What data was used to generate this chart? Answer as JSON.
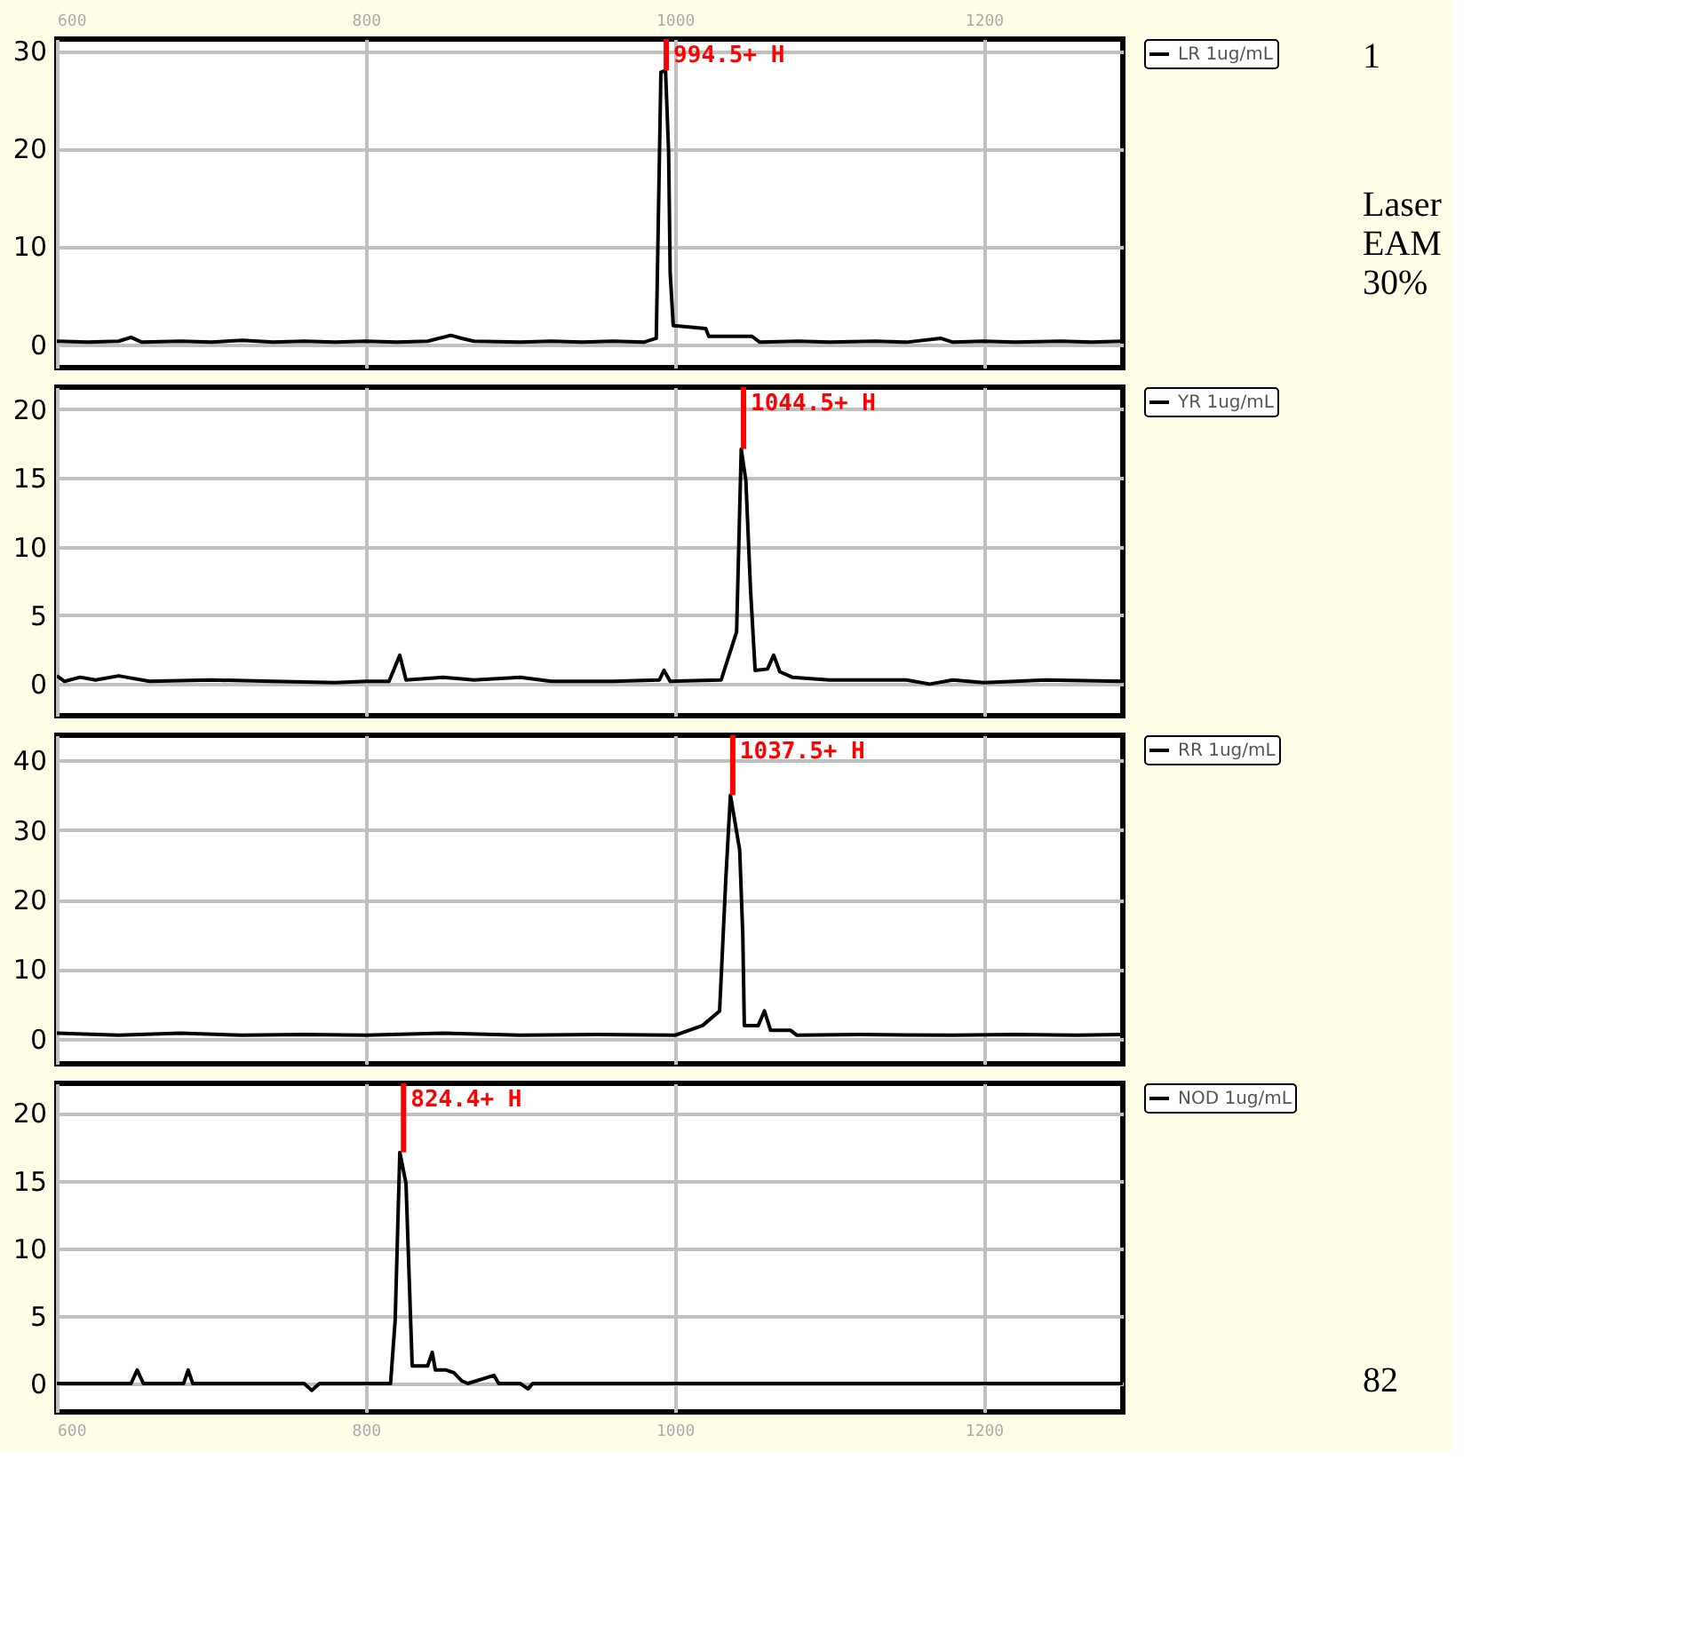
{
  "chart_data": [
    {
      "type": "line",
      "xlim": [
        600,
        1290
      ],
      "xticks": [
        600,
        800,
        1000,
        1200
      ],
      "ylim": [
        -2.4,
        31.2
      ],
      "yticks": [
        0,
        10,
        20,
        30
      ],
      "grid": true,
      "legend": "right",
      "series": [
        {
          "name": "LR 1ug/mL",
          "color": "#000000",
          "x": [
            600,
            620,
            640,
            648,
            655,
            680,
            700,
            720,
            740,
            760,
            780,
            800,
            820,
            840,
            855,
            862,
            870,
            900,
            920,
            940,
            960,
            980,
            988,
            991,
            994,
            996,
            997,
            999,
            1020,
            1022,
            1050,
            1055,
            1080,
            1100,
            1130,
            1150,
            1172,
            1180,
            1200,
            1220,
            1250,
            1270,
            1290
          ],
          "values": [
            0.3,
            0.2,
            0.3,
            0.7,
            0.2,
            0.3,
            0.2,
            0.4,
            0.2,
            0.3,
            0.2,
            0.3,
            0.2,
            0.3,
            0.9,
            0.6,
            0.3,
            0.2,
            0.3,
            0.2,
            0.3,
            0.2,
            0.6,
            27.8,
            28,
            19.6,
            7.3,
            1.9,
            1.6,
            0.8,
            0.8,
            0.2,
            0.3,
            0.2,
            0.3,
            0.2,
            0.6,
            0.2,
            0.3,
            0.2,
            0.3,
            0.2,
            0.3
          ]
        }
      ],
      "annotations": [
        {
          "text": "994.5+ H",
          "x": 994.5,
          "y": 28
        },
        "1",
        "Laser EAM 30%"
      ]
    },
    {
      "type": "line",
      "xlim": [
        600,
        1290
      ],
      "xticks": [
        600,
        800,
        1000,
        1200
      ],
      "ylim": [
        -2.3,
        21.6
      ],
      "yticks": [
        0,
        5,
        10,
        15,
        20
      ],
      "grid": true,
      "legend": "right",
      "tick_labels": "y",
      "series": [
        {
          "name": "YR 1ug/mL",
          "color": "#000000",
          "x": [
            600,
            605,
            615,
            625,
            640,
            660,
            700,
            740,
            780,
            800,
            815,
            822,
            826,
            850,
            870,
            900,
            920,
            960,
            990,
            993,
            997,
            1030,
            1040,
            1043,
            1046,
            1049,
            1052,
            1060,
            1064,
            1068,
            1076,
            1100,
            1150,
            1165,
            1180,
            1200,
            1240,
            1290
          ],
          "values": [
            0.6,
            0.2,
            0.5,
            0.3,
            0.6,
            0.2,
            0.3,
            0.2,
            0.1,
            0.2,
            0.2,
            2.1,
            0.3,
            0.5,
            0.3,
            0.5,
            0.2,
            0.2,
            0.3,
            1.0,
            0.2,
            0.3,
            3.8,
            17.1,
            14.8,
            6.9,
            1.0,
            1.1,
            2.1,
            0.9,
            0.5,
            0.3,
            0.3,
            0.0,
            0.3,
            0.1,
            0.3,
            0.2
          ]
        }
      ],
      "annotations": [
        {
          "text": "1044.5+ H",
          "x": 1044.5,
          "y": 17.1
        }
      ]
    },
    {
      "type": "line",
      "xlim": [
        600,
        1290
      ],
      "xticks": [
        600,
        800,
        1000,
        1200
      ],
      "ylim": [
        -3.6,
        43.6
      ],
      "yticks": [
        0,
        10,
        20,
        30,
        40
      ],
      "grid": true,
      "legend": "right",
      "tick_labels": "y",
      "series": [
        {
          "name": "RR 1ug/mL",
          "color": "#000000",
          "x": [
            600,
            640,
            680,
            720,
            760,
            800,
            850,
            900,
            950,
            1000,
            1018,
            1029,
            1033,
            1036,
            1042,
            1044,
            1045,
            1054,
            1058,
            1062,
            1075,
            1079,
            1120,
            1180,
            1220,
            1260,
            1290
          ],
          "values": [
            0.8,
            0.5,
            0.8,
            0.5,
            0.6,
            0.5,
            0.8,
            0.5,
            0.6,
            0.5,
            1.9,
            4.0,
            22.9,
            35,
            27.1,
            15,
            1.9,
            1.9,
            4.0,
            1.2,
            1.2,
            0.5,
            0.6,
            0.5,
            0.6,
            0.5,
            0.6
          ]
        }
      ],
      "annotations": [
        {
          "text": "1037.5+ H",
          "x": 1037.5,
          "y": 35
        }
      ]
    },
    {
      "type": "line",
      "xlim": [
        600,
        1290
      ],
      "xticks": [
        600,
        800,
        1000,
        1200
      ],
      "ylim": [
        -2.1,
        22.2
      ],
      "yticks": [
        0,
        5,
        10,
        15,
        20
      ],
      "grid": true,
      "legend": "right",
      "series": [
        {
          "name": "NOD 1ug/mL",
          "color": "#000000",
          "x": [
            600,
            648,
            652,
            656,
            682,
            685,
            688,
            760,
            765,
            770,
            816,
            819,
            822,
            826,
            830,
            840,
            843,
            845,
            852,
            857,
            862,
            866,
            883,
            886,
            900,
            905,
            908,
            1290
          ],
          "values": [
            0,
            0,
            1.0,
            0,
            0,
            1.0,
            0,
            0,
            -0.5,
            0,
            0,
            4.7,
            17.1,
            14.8,
            1.3,
            1.3,
            2.3,
            1.0,
            1.0,
            0.8,
            0.2,
            0,
            0.6,
            0,
            0,
            -0.4,
            0,
            0
          ]
        }
      ],
      "annotations": [
        {
          "text": "824.4+ H",
          "x": 824.4,
          "y": 17.1
        },
        "82"
      ]
    }
  ]
}
